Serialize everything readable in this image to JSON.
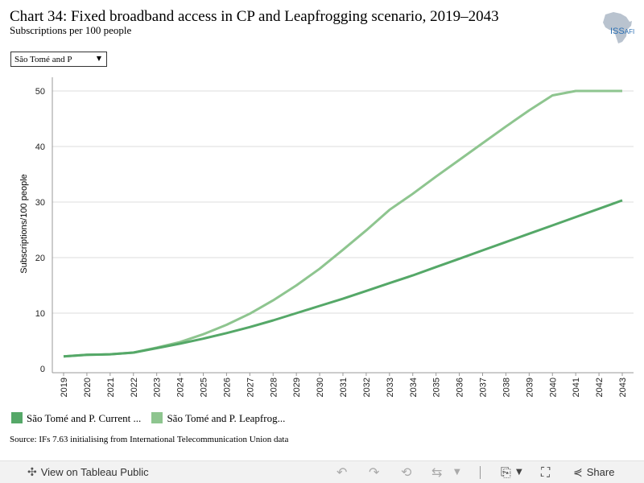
{
  "header": {
    "title": "Chart 34: Fixed broadband access in CP and Leapfrogging scenario, 2019–2043",
    "subtitle": "Subscriptions per 100 people"
  },
  "logo": {
    "text": "ISS",
    "suffix": "AFI",
    "icon": "africa-map-icon"
  },
  "filter": {
    "selected": "São Tomé and P"
  },
  "chart_data": {
    "type": "line",
    "ylabel": "Subscriptions/100 people",
    "ylim": [
      0,
      52
    ],
    "yticks": [
      "0",
      "10",
      "20",
      "30",
      "40",
      "50"
    ],
    "x": [
      "2019",
      "2020",
      "2021",
      "2022",
      "2023",
      "2024",
      "2025",
      "2026",
      "2027",
      "2028",
      "2029",
      "2030",
      "2031",
      "2032",
      "2033",
      "2034",
      "2035",
      "2036",
      "2037",
      "2038",
      "2039",
      "2040",
      "2041",
      "2042",
      "2043"
    ],
    "grid": "horizontal",
    "legend_position": "bottom-left",
    "series": [
      {
        "name": "São Tomé and P. Current ...",
        "color": "#55a868",
        "values": [
          2.2,
          2.5,
          2.6,
          2.9,
          3.7,
          4.5,
          5.4,
          6.4,
          7.5,
          8.7,
          10.0,
          11.3,
          12.6,
          14.0,
          15.4,
          16.8,
          18.3,
          19.8,
          21.3,
          22.8,
          24.3,
          25.8,
          27.3,
          28.8,
          30.3
        ]
      },
      {
        "name": "São Tomé and P. Leapfrog...",
        "color": "#8ec58f",
        "values": [
          2.2,
          2.5,
          2.6,
          2.9,
          3.8,
          4.8,
          6.2,
          7.9,
          9.9,
          12.3,
          15.0,
          18.0,
          21.4,
          24.9,
          28.6,
          31.5,
          34.6,
          37.6,
          40.6,
          43.6,
          46.5,
          49.2,
          51.8,
          51.8,
          51.8
        ]
      }
    ]
  },
  "source": "Source: IFs 7.63 initialising from International Telecommunication Union data",
  "footer": {
    "view_label": "View on Tableau Public",
    "share_label": "Share"
  }
}
